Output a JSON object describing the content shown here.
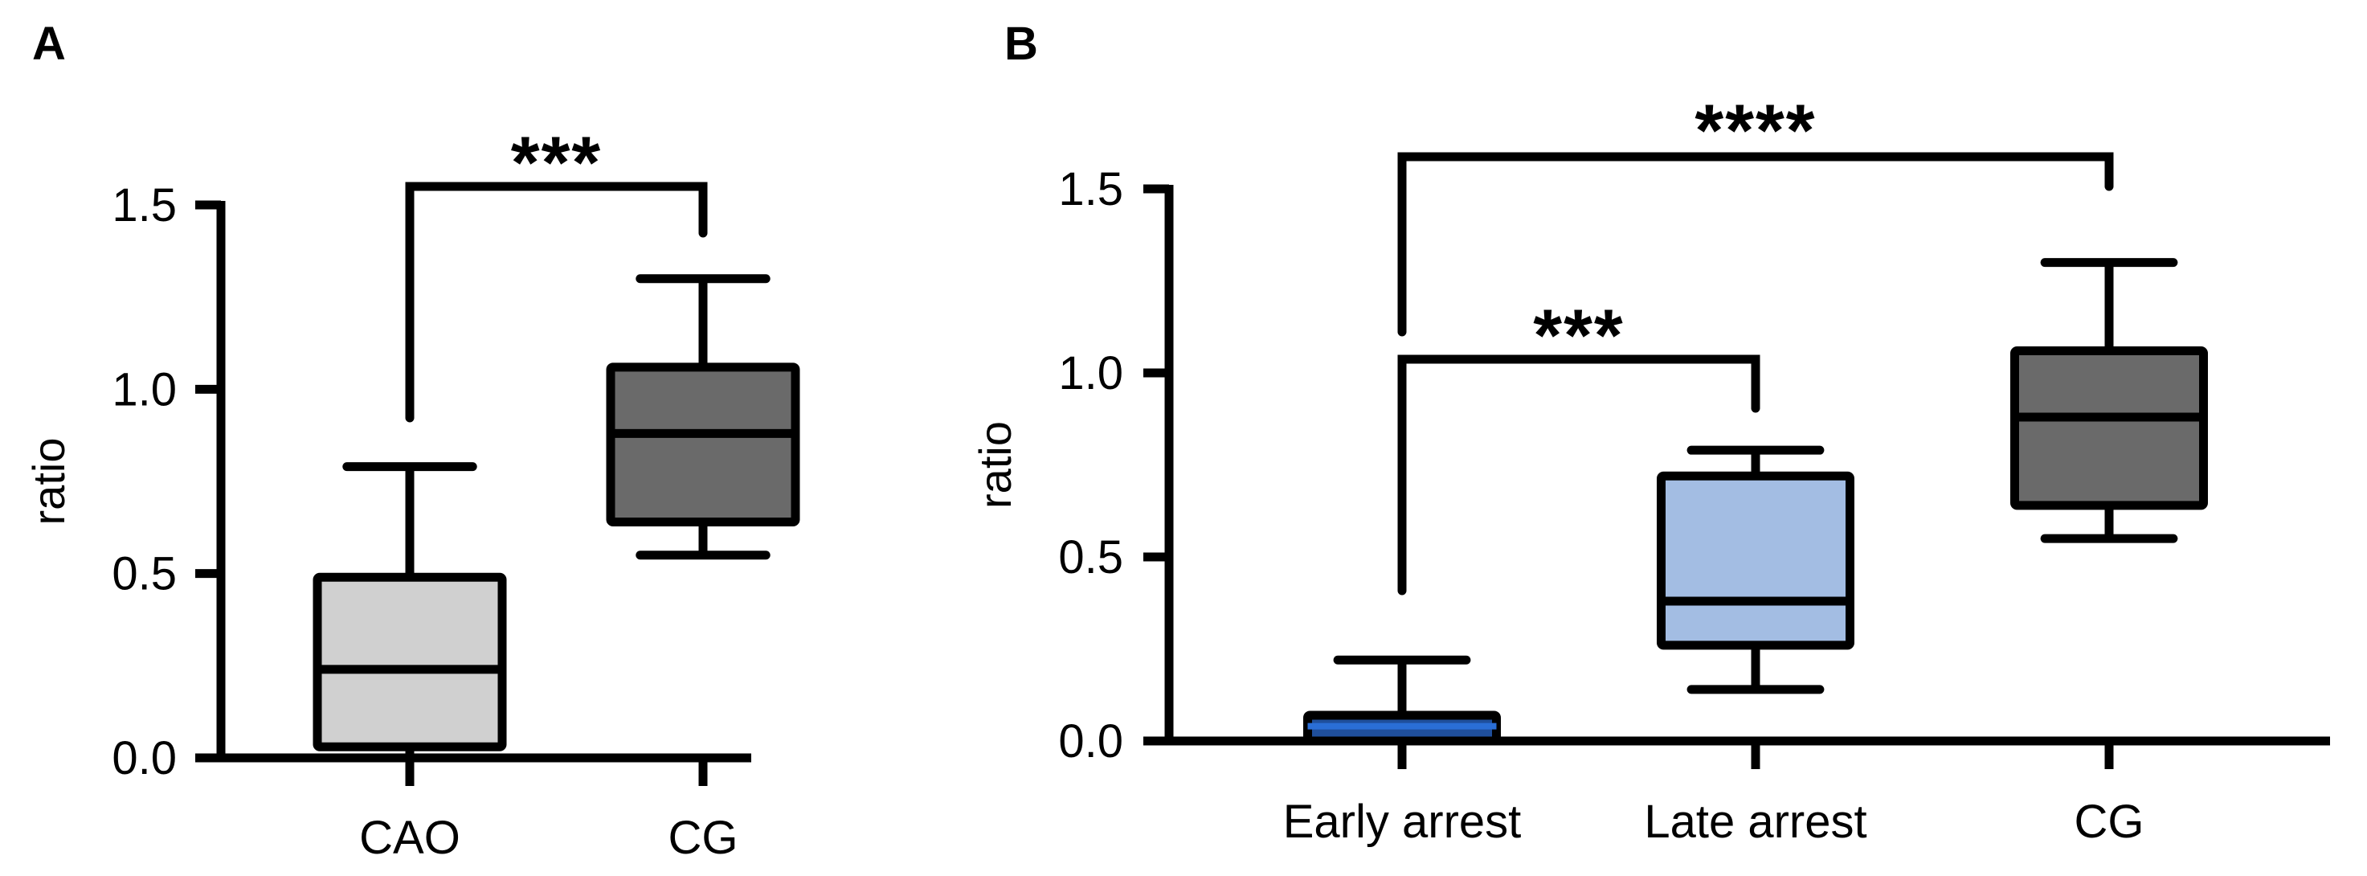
{
  "chart_data": [
    {
      "panel": "A",
      "type": "box",
      "ylabel": "ratio",
      "ylim": [
        0,
        1.5
      ],
      "yticks": [
        "0.0",
        "0.5",
        "1.0",
        "1.5"
      ],
      "categories": [
        "CAO",
        "CG"
      ],
      "boxes": [
        {
          "name": "CAO",
          "min": 0.0,
          "q1": 0.03,
          "median": 0.24,
          "q3": 0.49,
          "max": 0.79,
          "fill": "#d0d0d0"
        },
        {
          "name": "CG",
          "min": 0.55,
          "q1": 0.64,
          "median": 0.88,
          "q3": 1.06,
          "max": 1.3,
          "fill": "#6a6a6a"
        }
      ],
      "significance": [
        {
          "from": 0,
          "to": 1,
          "label": "***"
        }
      ]
    },
    {
      "panel": "B",
      "type": "box",
      "ylabel": "ratio",
      "ylim": [
        0,
        1.5
      ],
      "yticks": [
        "0.0",
        "0.5",
        "1.0",
        "1.5"
      ],
      "categories": [
        "Early arrest",
        "Late arrest",
        "CG"
      ],
      "boxes": [
        {
          "name": "Early arrest",
          "min": 0.0,
          "q1": 0.0,
          "median": 0.04,
          "q3": 0.07,
          "max": 0.22,
          "fill": "#1f4f9c",
          "median_color": "#2a6ed6"
        },
        {
          "name": "Late arrest",
          "min": 0.14,
          "q1": 0.26,
          "median": 0.38,
          "q3": 0.72,
          "max": 0.79,
          "fill": "#a3bde3"
        },
        {
          "name": "CG",
          "min": 0.55,
          "q1": 0.64,
          "median": 0.88,
          "q3": 1.06,
          "max": 1.3,
          "fill": "#6a6a6a"
        }
      ],
      "significance": [
        {
          "from": 0,
          "to": 1,
          "label": "***"
        },
        {
          "from": 0,
          "to": 2,
          "label": "****"
        }
      ]
    }
  ]
}
